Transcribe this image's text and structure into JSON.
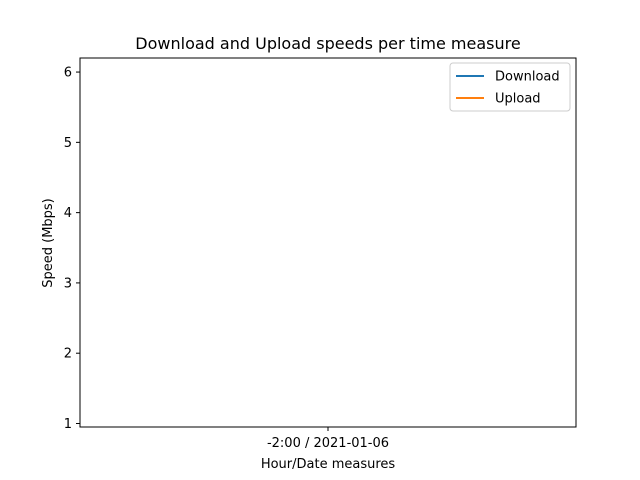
{
  "chart_data": {
    "type": "line",
    "title": "Download and Upload speeds per time measure",
    "xlabel": "Hour/Date measures",
    "ylabel": "Speed (Mbps)",
    "categories": [
      "-2:00 / 2021-01-06"
    ],
    "ylim": [
      0.95,
      6.2
    ],
    "yticks": [
      1,
      2,
      3,
      4,
      5,
      6
    ],
    "grid": false,
    "legend_position": "top-right",
    "series": [
      {
        "name": "Download",
        "color": "#1f77b4",
        "values": [
          null
        ]
      },
      {
        "name": "Upload",
        "color": "#ff7f0e",
        "values": [
          null
        ]
      }
    ]
  }
}
